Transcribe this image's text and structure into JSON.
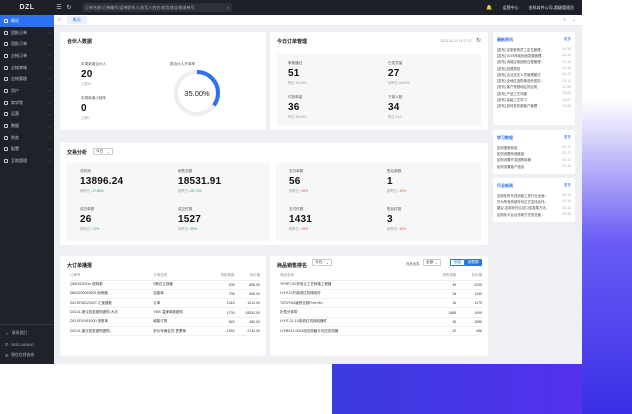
{
  "topbar": {
    "logo": "DZL",
    "search_placeholder": "订单名称/订单编号/运单联系人/收货人姓名/收货地址/物流单号",
    "right_items": [
      "",
      "运营中心",
      "金科软件公司-超级管理员"
    ]
  },
  "tabs": {
    "active": "概况"
  },
  "sidebar": {
    "items": [
      {
        "label": "概况",
        "active": true
      },
      {
        "label": "团批订单"
      },
      {
        "label": "团批订单"
      },
      {
        "label": "企帐订单"
      },
      {
        "label": "企帐商城"
      },
      {
        "label": "企帐管理"
      },
      {
        "label": "用户"
      },
      {
        "label": "商学院"
      },
      {
        "label": "运营"
      },
      {
        "label": "数据"
      },
      {
        "label": "财务"
      },
      {
        "label": "配置"
      },
      {
        "label": "互助管理"
      }
    ],
    "footer": [
      {
        "label": "联系我们"
      },
      {
        "label": "0532-185400"
      },
      {
        "label": "微信在线咨询"
      }
    ]
  },
  "partners": {
    "title": "合伙人数据",
    "stats": [
      {
        "label": "本周新增合伙人",
        "value": "20",
        "sub": "上周24"
      },
      {
        "label": "本周新增小程序",
        "value": "0",
        "sub": "上周0"
      }
    ],
    "donut": {
      "label": "群合伙人开单率",
      "value": "35.00%",
      "fraction": 0.35,
      "color": "#2d6ff7"
    }
  },
  "todo": {
    "title": "今日订单管理",
    "date": "2023-04-21 14:17:17",
    "stats": [
      {
        "label": "审核通过",
        "value": "51",
        "sub": "昨日 46.00%"
      },
      {
        "label": "已发货量",
        "value": "27",
        "sub": "较昨日 48.00%"
      },
      {
        "label": "付款单量",
        "value": "36",
        "sub": "昨日 58.00%"
      },
      {
        "label": "下单人数",
        "value": "34",
        "sub": "昨日 34人"
      }
    ]
  },
  "trade": {
    "title": "交易分析",
    "select": "今日",
    "stats": [
      {
        "label": "总利润",
        "value": "13896.24",
        "sub_label": "较昨日",
        "delta": "17.65%",
        "dir": "down"
      },
      {
        "label": "销售总额",
        "value": "18531.91",
        "sub_label": "较昨日",
        "delta": "28.74%",
        "dir": "down"
      },
      {
        "label": "支付单数",
        "value": "56",
        "sub_label": "较昨日",
        "delta": "49%",
        "dir": "up"
      },
      {
        "label": "售后单数",
        "value": "1",
        "sub_label": "较昨日",
        "delta": "10%",
        "dir": "up"
      },
      {
        "label": "成交单数",
        "value": "26",
        "sub_label": "较昨日",
        "delta": "71%",
        "dir": "down"
      },
      {
        "label": "成交件数",
        "value": "1527",
        "sub_label": "较昨日",
        "delta": "59%",
        "dir": "down"
      },
      {
        "label": "支付件数",
        "value": "1431",
        "sub_label": "较昨日",
        "delta": "49%",
        "dir": "up"
      },
      {
        "label": "售后件数",
        "value": "3",
        "sub_label": "较昨日",
        "delta": "15%",
        "dir": "up"
      }
    ]
  },
  "bigorders": {
    "title": "大订单播报",
    "columns": [
      "订单号",
      "订单名称",
      "采购单数",
      "总价格"
    ],
    "rows": [
      [
        "QM1912091e 规则单",
        "0蛋白立刻器",
        "205",
        "855.00"
      ],
      [
        "DB20230023009 用例器",
        "百能单",
        "708",
        "696.00"
      ],
      [
        "DZLSF08120027-汇速速数",
        "订单",
        "1015",
        "1012.00"
      ],
      [
        "DZL01-速汉批发团购团购-大次",
        "YMS 温速单链团购",
        "1700",
        "18252.00"
      ],
      [
        "DZLSF01911000-多数单",
        "增能订购",
        "520",
        "480.00"
      ],
      [
        "DZL01-速次批发团购团购...",
        "折价车辆会员-售票单",
        "1392",
        "2742.00"
      ]
    ]
  },
  "products": {
    "title": "商品销售排名",
    "select": "今日",
    "filter_label": "商品品类",
    "filter_value": "全部",
    "buttons": [
      "销量",
      "销售额"
    ],
    "columns": [
      "商品名称",
      "采购单数",
      "总价格"
    ],
    "rows": [
      [
        "YFHP-010非商止工艺转轴工程器",
        "49",
        "2235"
      ],
      [
        "LYHT10只能低红机械线时",
        "34",
        "1190"
      ],
      [
        "TZSYH10级别仓数Free Mo",
        "16",
        "1170"
      ],
      [
        "折叠分体带",
        "1869",
        "1909"
      ],
      [
        "LYHT-21-1X能低红机械线器件",
        "30",
        "1050"
      ],
      [
        "LYH8231-0031用边测截平可控发电器",
        "20",
        "496"
      ]
    ]
  },
  "right": {
    "news": {
      "title": "最新资讯",
      "more": "更多",
      "items": [
        [
          "[发布] 定制我的员工定位管理...",
          "04-16"
        ],
        [
          "[发布] 2019商城页面发展管理...",
          "04-16"
        ],
        [
          "[发布] 消费应用回收过程管理...",
          "01-16"
        ],
        [
          "[发布] 回退规范",
          "01-15"
        ],
        [
          "[发布] 企业定位人员管理模式",
          "01-13"
        ],
        [
          "[发布] 全地区选购单选完成的...",
          "01-11"
        ],
        [
          "[发布] 客户是基地区的应用",
          "12-09"
        ],
        [
          "[发布] 产品工艺详细",
          "12-08"
        ],
        [
          "[发布] 高级工艺学习",
          "12-07"
        ],
        [
          "[发布] 如何发布新客户管理",
          "12-06"
        ]
      ]
    },
    "learn": {
      "title": "学习教程",
      "more": "更多",
      "items": [
        [
          "如何搜索商品",
          "01-17"
        ],
        [
          "如何设置商城链接",
          "01-17"
        ],
        [
          "如何设置开发团购转换",
          "01-17"
        ],
        [
          "如何设置客户信息",
          "01-16"
        ]
      ]
    },
    "industry": {
      "title": "行业新闻",
      "more": "更多",
      "items": [
        [
          "定制化时代成消费工具行业全面...",
          "04-14"
        ],
        [
          "华为所有商城年份正式支持合作...",
          "04-14"
        ],
        [
          "建议-定制化的认证口径发展方法...",
          "03-10"
        ],
        [
          "定制化平台合作新方式的全面...",
          "03-08"
        ]
      ]
    }
  }
}
